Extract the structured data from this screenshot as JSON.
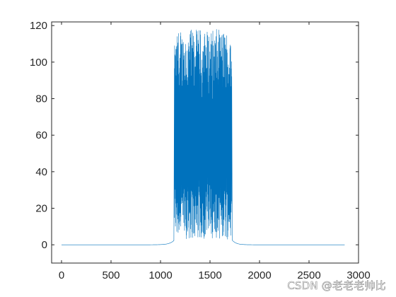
{
  "chart_data": {
    "type": "line",
    "title": "",
    "xlabel": "",
    "ylabel": "",
    "xlim": [
      -100,
      3000
    ],
    "ylim": [
      -10,
      122
    ],
    "xticks": [
      0,
      500,
      1000,
      1500,
      2000,
      2500,
      3000
    ],
    "yticks": [
      0,
      20,
      40,
      60,
      80,
      100,
      120
    ],
    "grid": false,
    "series": [
      {
        "color": "#0072bd",
        "x_range": [
          0,
          2860
        ],
        "baseline": 0,
        "burst": {
          "x_range": [
            1140,
            1720
          ],
          "y_range": [
            3,
            118
          ]
        },
        "points": [
          [
            0,
            0
          ],
          [
            500,
            0
          ],
          [
            1000,
            0.3
          ],
          [
            1100,
            1.2
          ],
          [
            1130,
            2.5
          ],
          [
            1140,
            52
          ],
          [
            1145,
            105
          ],
          [
            1160,
            25
          ],
          [
            1200,
            112
          ],
          [
            1250,
            118
          ],
          [
            1300,
            95
          ],
          [
            1350,
            117
          ],
          [
            1400,
            108
          ],
          [
            1450,
            118
          ],
          [
            1500,
            116
          ],
          [
            1550,
            114
          ],
          [
            1600,
            118
          ],
          [
            1650,
            112
          ],
          [
            1700,
            102
          ],
          [
            1715,
            21
          ],
          [
            1720,
            4
          ],
          [
            1750,
            2
          ],
          [
            1800,
            0.8
          ],
          [
            2000,
            0.2
          ],
          [
            2500,
            0
          ],
          [
            2860,
            0
          ]
        ]
      }
    ]
  },
  "watermark": "CSDN @老老老帅比"
}
